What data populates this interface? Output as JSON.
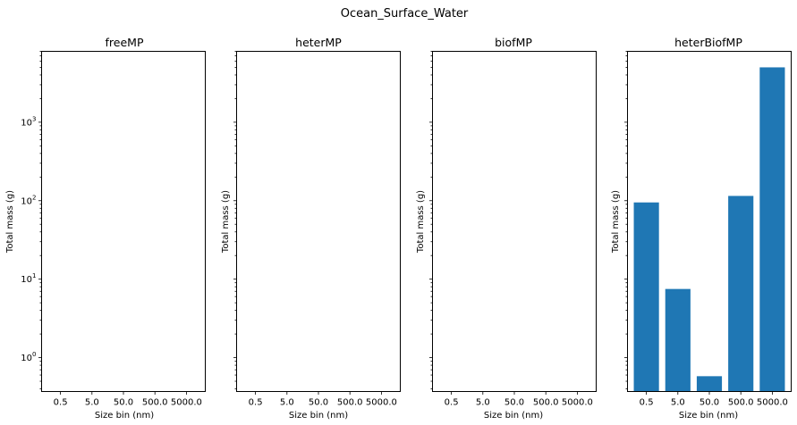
{
  "chart_data": {
    "type": "bar",
    "title": "Ocean_Surface_Water",
    "bar_color": "#1f77b4",
    "yscale": "log",
    "ylim": [
      0.37,
      8000
    ],
    "y_ticks": [
      {
        "value": 1,
        "base": "10",
        "exp": "0"
      },
      {
        "value": 10,
        "base": "10",
        "exp": "1"
      },
      {
        "value": 100,
        "base": "10",
        "exp": "2"
      },
      {
        "value": 1000,
        "base": "10",
        "exp": "3"
      }
    ],
    "categories": [
      "0.5",
      "5.0",
      "50.0",
      "500.0",
      "5000.0"
    ],
    "panels": [
      {
        "title": "freeMP",
        "xlabel": "Size bin (nm)",
        "ylabel": "Total mass (g)",
        "values": [
          null,
          null,
          null,
          null,
          null
        ],
        "show_y_tick_labels": true
      },
      {
        "title": "heterMP",
        "xlabel": "Size bin (nm)",
        "ylabel": "Total mass (g)",
        "values": [
          null,
          null,
          null,
          null,
          null
        ],
        "show_y_tick_labels": false
      },
      {
        "title": "biofMP",
        "xlabel": "Size bin (nm)",
        "ylabel": "Total mass (g)",
        "values": [
          null,
          null,
          null,
          null,
          null
        ],
        "show_y_tick_labels": false
      },
      {
        "title": "heterBiofMP",
        "xlabel": "Size bin (nm)",
        "ylabel": "Total mass (g)",
        "values": [
          95,
          7.5,
          0.58,
          115,
          5000
        ],
        "show_y_tick_labels": false
      }
    ]
  }
}
